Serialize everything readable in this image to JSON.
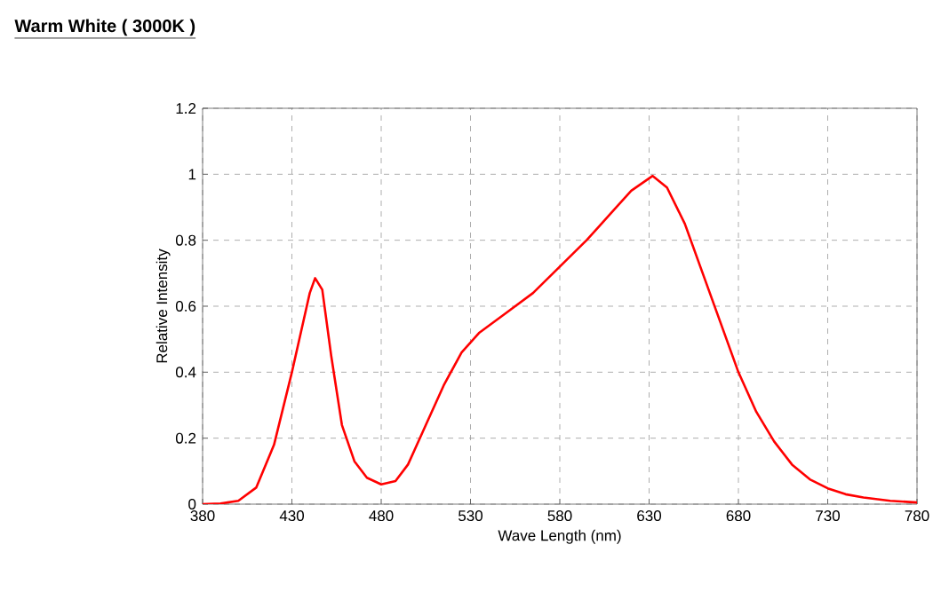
{
  "chart_data": {
    "type": "line",
    "title": "Warm White  ( 3000K )",
    "xlabel": "Wave Length (nm)",
    "ylabel": "Relative Intensity",
    "xlim": [
      380,
      780
    ],
    "xticks": [
      380,
      430,
      480,
      530,
      580,
      630,
      680,
      730,
      780
    ],
    "ylim": [
      0,
      1.2
    ],
    "yticks": [
      0,
      0.2,
      0.4,
      0.6,
      0.8,
      1,
      1.2
    ],
    "grid": true,
    "legend": false,
    "marker": "none",
    "line_style": "solid",
    "series": [
      {
        "color": "#ff0000",
        "x": [
          380,
          390,
          400,
          410,
          420,
          430,
          435,
          440,
          443,
          447,
          452,
          458,
          465,
          472,
          480,
          488,
          495,
          505,
          515,
          525,
          535,
          550,
          565,
          580,
          595,
          610,
          620,
          632,
          640,
          650,
          660,
          670,
          680,
          690,
          700,
          710,
          720,
          730,
          740,
          750,
          765,
          780
        ],
        "values": [
          0,
          0.002,
          0.01,
          0.05,
          0.18,
          0.4,
          0.52,
          0.64,
          0.685,
          0.65,
          0.45,
          0.24,
          0.13,
          0.08,
          0.06,
          0.07,
          0.12,
          0.24,
          0.36,
          0.46,
          0.52,
          0.58,
          0.64,
          0.72,
          0.8,
          0.89,
          0.95,
          0.995,
          0.96,
          0.85,
          0.7,
          0.55,
          0.4,
          0.28,
          0.19,
          0.12,
          0.075,
          0.048,
          0.03,
          0.02,
          0.01,
          0.005
        ]
      }
    ]
  }
}
